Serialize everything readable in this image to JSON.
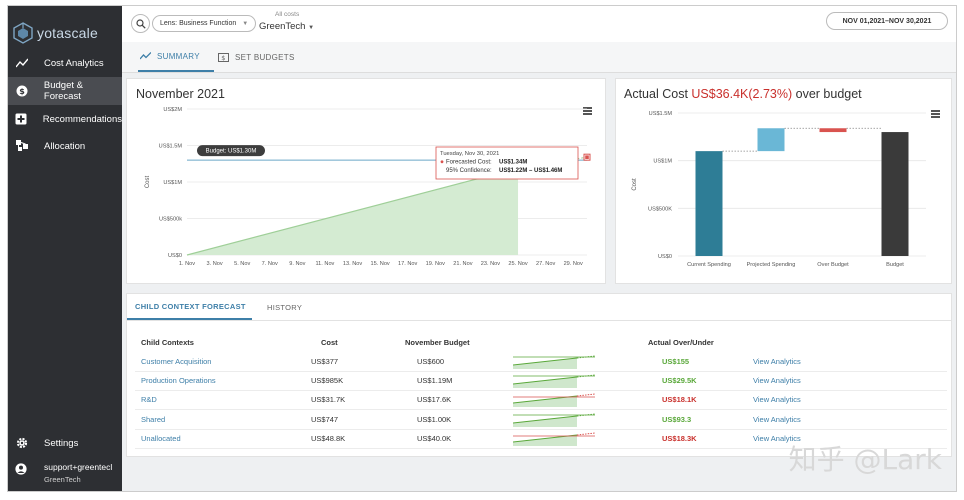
{
  "brand": {
    "logo_text": "yotascale"
  },
  "sidebar": {
    "items": [
      {
        "label": "Cost Analytics",
        "icon": "trend-icon"
      },
      {
        "label": "Budget & Forecast",
        "icon": "dollar-icon"
      },
      {
        "label": "Recommendations",
        "icon": "plus-box-icon"
      },
      {
        "label": "Allocation",
        "icon": "allocation-icon"
      },
      {
        "label": "Settings",
        "icon": "gear-icon"
      }
    ],
    "user": {
      "name": "support+greentecl",
      "org": "GreenTech"
    }
  },
  "topbar": {
    "lens_label": "Lens: Business Function",
    "scope_label": "All costs",
    "scope_value": "GreenTech",
    "date_range": "NOV 01,2021–NOV 30,2021"
  },
  "tabs": [
    {
      "label": "SUMMARY"
    },
    {
      "label": "SET BUDGETS"
    }
  ],
  "forecast_card": {
    "title": "November 2021"
  },
  "actual_card": {
    "title_prefix": "Actual Cost ",
    "title_highlight": "US$36.4K(2.73%)",
    "title_suffix": " over budget",
    "highlight_color": "#c9302c"
  },
  "chart_data": [
    {
      "type": "area",
      "title": "November 2021",
      "ylabel": "Cost",
      "categories": [
        "1. Nov",
        "3. Nov",
        "5. Nov",
        "7. Nov",
        "9. Nov",
        "11. Nov",
        "13. Nov",
        "15. Nov",
        "17. Nov",
        "19. Nov",
        "21. Nov",
        "23. Nov",
        "25. Nov",
        "27. Nov",
        "29. Nov"
      ],
      "y_ticks": [
        "US$0",
        "US$500k",
        "US$1M",
        "US$1.5M",
        "US$2M"
      ],
      "ylim": [
        0,
        2000000
      ],
      "series": [
        {
          "name": "Forecasted Cost",
          "x": [
            1,
            25,
            30
          ],
          "values": [
            0,
            1190000,
            1340000
          ]
        }
      ],
      "budget_line": {
        "label": "Budget: US$1.30M",
        "value": 1300000
      },
      "tooltip": {
        "date": "Tuesday, Nov 30, 2021",
        "forecast_label": "Forecasted Cost:",
        "forecast_value": "US$1.34M",
        "confidence_label": "95% Confidence:",
        "confidence_value": "US$1.22M – US$1.46M"
      }
    },
    {
      "type": "bar",
      "subtype": "waterfall",
      "ylabel": "Cost",
      "categories": [
        "Current Spending",
        "Projected Spending",
        "Over Budget",
        "Budget"
      ],
      "y_ticks": [
        "US$0",
        "US$500K",
        "US$1M",
        "US$1.5M"
      ],
      "ylim": [
        0,
        1500000
      ],
      "bars": [
        {
          "category": "Current Spending",
          "start": 0,
          "end": 1100000,
          "color": "#2e7d96"
        },
        {
          "category": "Projected Spending",
          "start": 1100000,
          "end": 1340000,
          "color": "#6ab7d6"
        },
        {
          "category": "Over Budget",
          "start": 1300000,
          "end": 1340000,
          "color": "#d9534f"
        },
        {
          "category": "Budget",
          "start": 0,
          "end": 1300000,
          "color": "#3a3a3a"
        }
      ]
    }
  ],
  "bottom": {
    "subtabs": [
      {
        "label": "CHILD CONTEXT FORECAST"
      },
      {
        "label": "HISTORY"
      }
    ],
    "headers": {
      "context": "Child Contexts",
      "cost": "Cost",
      "budget": "November Budget",
      "over": "Actual Over/Under"
    },
    "rows": [
      {
        "context": "Customer Acquisition",
        "cost": "US$377",
        "budget": "US$600",
        "over": "US$155",
        "status": "under",
        "trend": "green",
        "action": "View Analytics"
      },
      {
        "context": "Production Operations",
        "cost": "US$985K",
        "budget": "US$1.19M",
        "over": "US$29.5K",
        "status": "under",
        "trend": "green",
        "action": "View Analytics"
      },
      {
        "context": "R&D",
        "cost": "US$31.7K",
        "budget": "US$17.6K",
        "over": "US$18.1K",
        "status": "over",
        "trend": "red",
        "action": "View Analytics"
      },
      {
        "context": "Shared",
        "cost": "US$747",
        "budget": "US$1.00K",
        "over": "US$93.3",
        "status": "under",
        "trend": "green",
        "action": "View Analytics"
      },
      {
        "context": "Unallocated",
        "cost": "US$48.8K",
        "budget": "US$40.0K",
        "over": "US$18.3K",
        "status": "over",
        "trend": "red",
        "action": "View Analytics"
      }
    ]
  },
  "watermark": "知乎 @Lark"
}
